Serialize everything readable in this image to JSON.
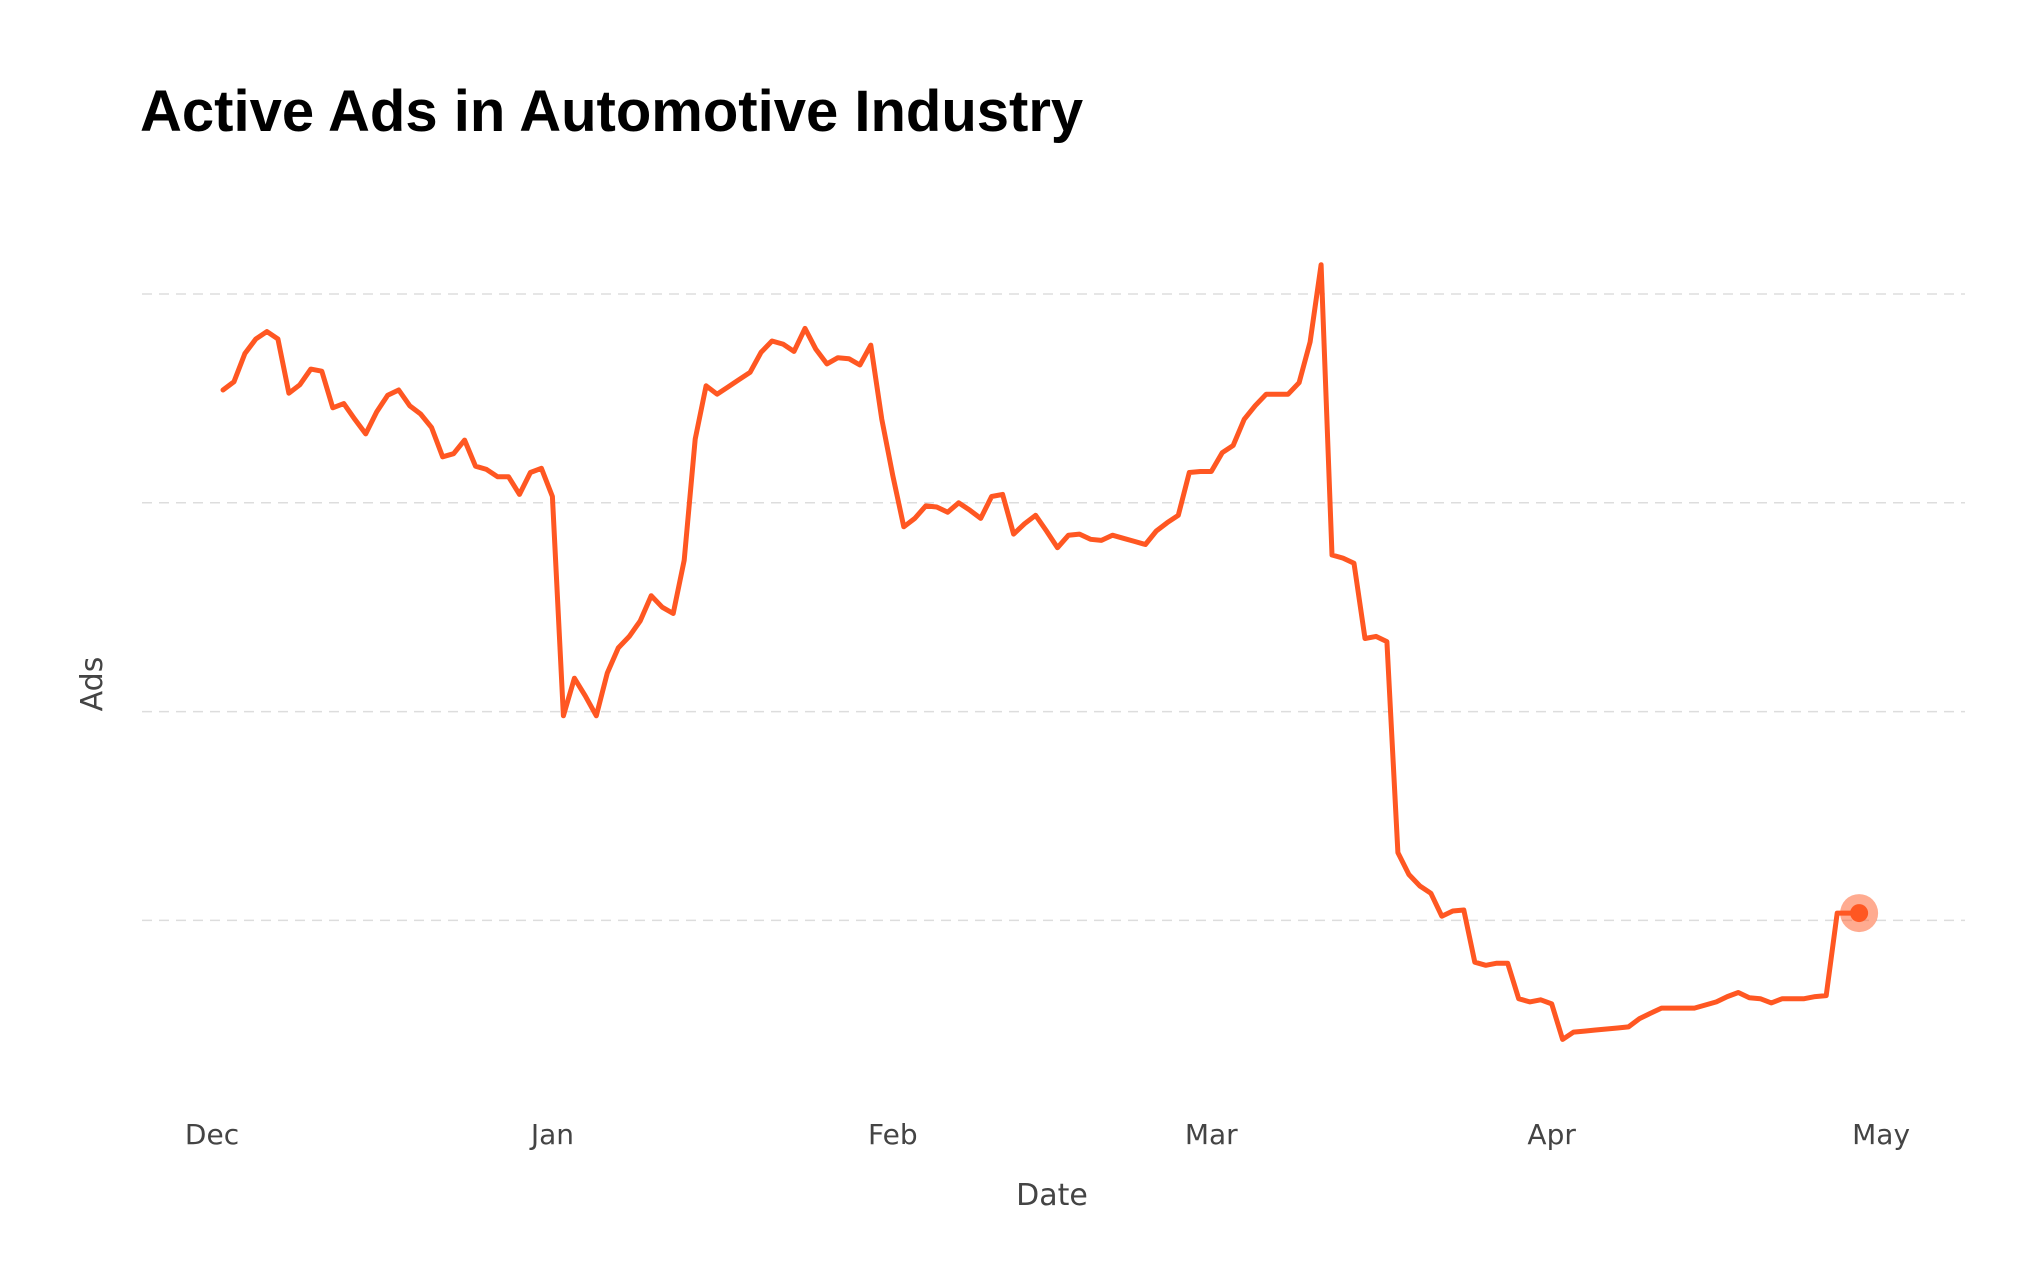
{
  "chart_data": {
    "type": "line",
    "title": "Active Ads in Automotive Industry",
    "xlabel": "Date",
    "ylabel": "Ads",
    "y_tick_labels_shown": false,
    "grid": "horizontal-dashed",
    "xlim": [
      0,
      156
    ],
    "x_ticks": [
      {
        "label": "Dec",
        "x": 0
      },
      {
        "label": "Jan",
        "x": 31
      },
      {
        "label": "Feb",
        "x": 62
      },
      {
        "label": "Mar",
        "x": 91
      },
      {
        "label": "Apr",
        "x": 122
      },
      {
        "label": "May",
        "x": 152
      }
    ],
    "y_gridlines": [
      2,
      4,
      6,
      8
    ],
    "ylim": [
      0.28,
      8.9
    ],
    "colors": {
      "line": "#ff5722",
      "marker": "#ff5722",
      "grid": "#dddddd"
    },
    "last_point_marker": true,
    "series": [
      {
        "values": [
          [
            1,
            7.08
          ],
          [
            2,
            7.16
          ],
          [
            3,
            7.43
          ],
          [
            4,
            7.57
          ],
          [
            5,
            7.64
          ],
          [
            6,
            7.57
          ],
          [
            7,
            7.05
          ],
          [
            8,
            7.13
          ],
          [
            9,
            7.28
          ],
          [
            10,
            7.26
          ],
          [
            11,
            6.91
          ],
          [
            12,
            6.95
          ],
          [
            13,
            6.8
          ],
          [
            14,
            6.66
          ],
          [
            15,
            6.87
          ],
          [
            16,
            7.03
          ],
          [
            17,
            7.08
          ],
          [
            18,
            6.93
          ],
          [
            19,
            6.85
          ],
          [
            20,
            6.72
          ],
          [
            21,
            6.44
          ],
          [
            22,
            6.47
          ],
          [
            23,
            6.6
          ],
          [
            24,
            6.35
          ],
          [
            25,
            6.32
          ],
          [
            26,
            6.25
          ],
          [
            27,
            6.25
          ],
          [
            28,
            6.08
          ],
          [
            29,
            6.29
          ],
          [
            30,
            6.33
          ],
          [
            31,
            6.06
          ],
          [
            32,
            3.96
          ],
          [
            33,
            4.32
          ],
          [
            34,
            4.15
          ],
          [
            35,
            3.96
          ],
          [
            36,
            4.37
          ],
          [
            37,
            4.61
          ],
          [
            38,
            4.72
          ],
          [
            39,
            4.87
          ],
          [
            40,
            5.11
          ],
          [
            41,
            5.0
          ],
          [
            42,
            4.94
          ],
          [
            43,
            5.45
          ],
          [
            44,
            6.61
          ],
          [
            45,
            7.12
          ],
          [
            46,
            7.04
          ],
          [
            47,
            7.11
          ],
          [
            48,
            7.18
          ],
          [
            49,
            7.25
          ],
          [
            50,
            7.44
          ],
          [
            51,
            7.55
          ],
          [
            52,
            7.52
          ],
          [
            53,
            7.45
          ],
          [
            54,
            7.67
          ],
          [
            55,
            7.47
          ],
          [
            56,
            7.33
          ],
          [
            57,
            7.39
          ],
          [
            58,
            7.38
          ],
          [
            59,
            7.32
          ],
          [
            60,
            7.51
          ],
          [
            61,
            6.8
          ],
          [
            62,
            6.26
          ],
          [
            63,
            5.77
          ],
          [
            64,
            5.85
          ],
          [
            65,
            5.97
          ],
          [
            66,
            5.96
          ],
          [
            67,
            5.91
          ],
          [
            68,
            6.0
          ],
          [
            69,
            5.93
          ],
          [
            70,
            5.85
          ],
          [
            71,
            6.06
          ],
          [
            72,
            6.08
          ],
          [
            73,
            5.7
          ],
          [
            74,
            5.8
          ],
          [
            75,
            5.88
          ],
          [
            76,
            5.73
          ],
          [
            77,
            5.57
          ],
          [
            78,
            5.69
          ],
          [
            79,
            5.7
          ],
          [
            80,
            5.65
          ],
          [
            81,
            5.64
          ],
          [
            82,
            5.69
          ],
          [
            83,
            5.66
          ],
          [
            84,
            5.63
          ],
          [
            85,
            5.6
          ],
          [
            86,
            5.73
          ],
          [
            87,
            5.81
          ],
          [
            88,
            5.88
          ],
          [
            89,
            6.29
          ],
          [
            90,
            6.3
          ],
          [
            91,
            6.3
          ],
          [
            92,
            6.48
          ],
          [
            93,
            6.55
          ],
          [
            94,
            6.8
          ],
          [
            95,
            6.93
          ],
          [
            96,
            7.04
          ],
          [
            97,
            7.04
          ],
          [
            98,
            7.04
          ],
          [
            99,
            7.15
          ],
          [
            100,
            7.54
          ],
          [
            101,
            8.28
          ],
          [
            102,
            5.5
          ],
          [
            103,
            5.47
          ],
          [
            104,
            5.42
          ],
          [
            105,
            4.7
          ],
          [
            106,
            4.72
          ],
          [
            107,
            4.67
          ],
          [
            108,
            2.65
          ],
          [
            109,
            2.44
          ],
          [
            110,
            2.33
          ],
          [
            111,
            2.26
          ],
          [
            112,
            2.04
          ],
          [
            113,
            2.09
          ],
          [
            114,
            2.1
          ],
          [
            115,
            1.6
          ],
          [
            116,
            1.57
          ],
          [
            117,
            1.59
          ],
          [
            118,
            1.59
          ],
          [
            119,
            1.25
          ],
          [
            120,
            1.22
          ],
          [
            121,
            1.24
          ],
          [
            122,
            1.2
          ],
          [
            123,
            0.86
          ],
          [
            124,
            0.93
          ],
          [
            125,
            0.94
          ],
          [
            126,
            0.95
          ],
          [
            127,
            0.96
          ],
          [
            128,
            0.97
          ],
          [
            129,
            0.98
          ],
          [
            130,
            1.06
          ],
          [
            131,
            1.11
          ],
          [
            132,
            1.16
          ],
          [
            133,
            1.16
          ],
          [
            134,
            1.16
          ],
          [
            135,
            1.16
          ],
          [
            136,
            1.19
          ],
          [
            137,
            1.22
          ],
          [
            138,
            1.27
          ],
          [
            139,
            1.31
          ],
          [
            140,
            1.26
          ],
          [
            141,
            1.25
          ],
          [
            142,
            1.21
          ],
          [
            143,
            1.25
          ],
          [
            144,
            1.25
          ],
          [
            145,
            1.25
          ],
          [
            146,
            1.27
          ],
          [
            147,
            1.28
          ],
          [
            148,
            2.07
          ],
          [
            149,
            2.07
          ],
          [
            150,
            2.07
          ]
        ]
      }
    ]
  }
}
